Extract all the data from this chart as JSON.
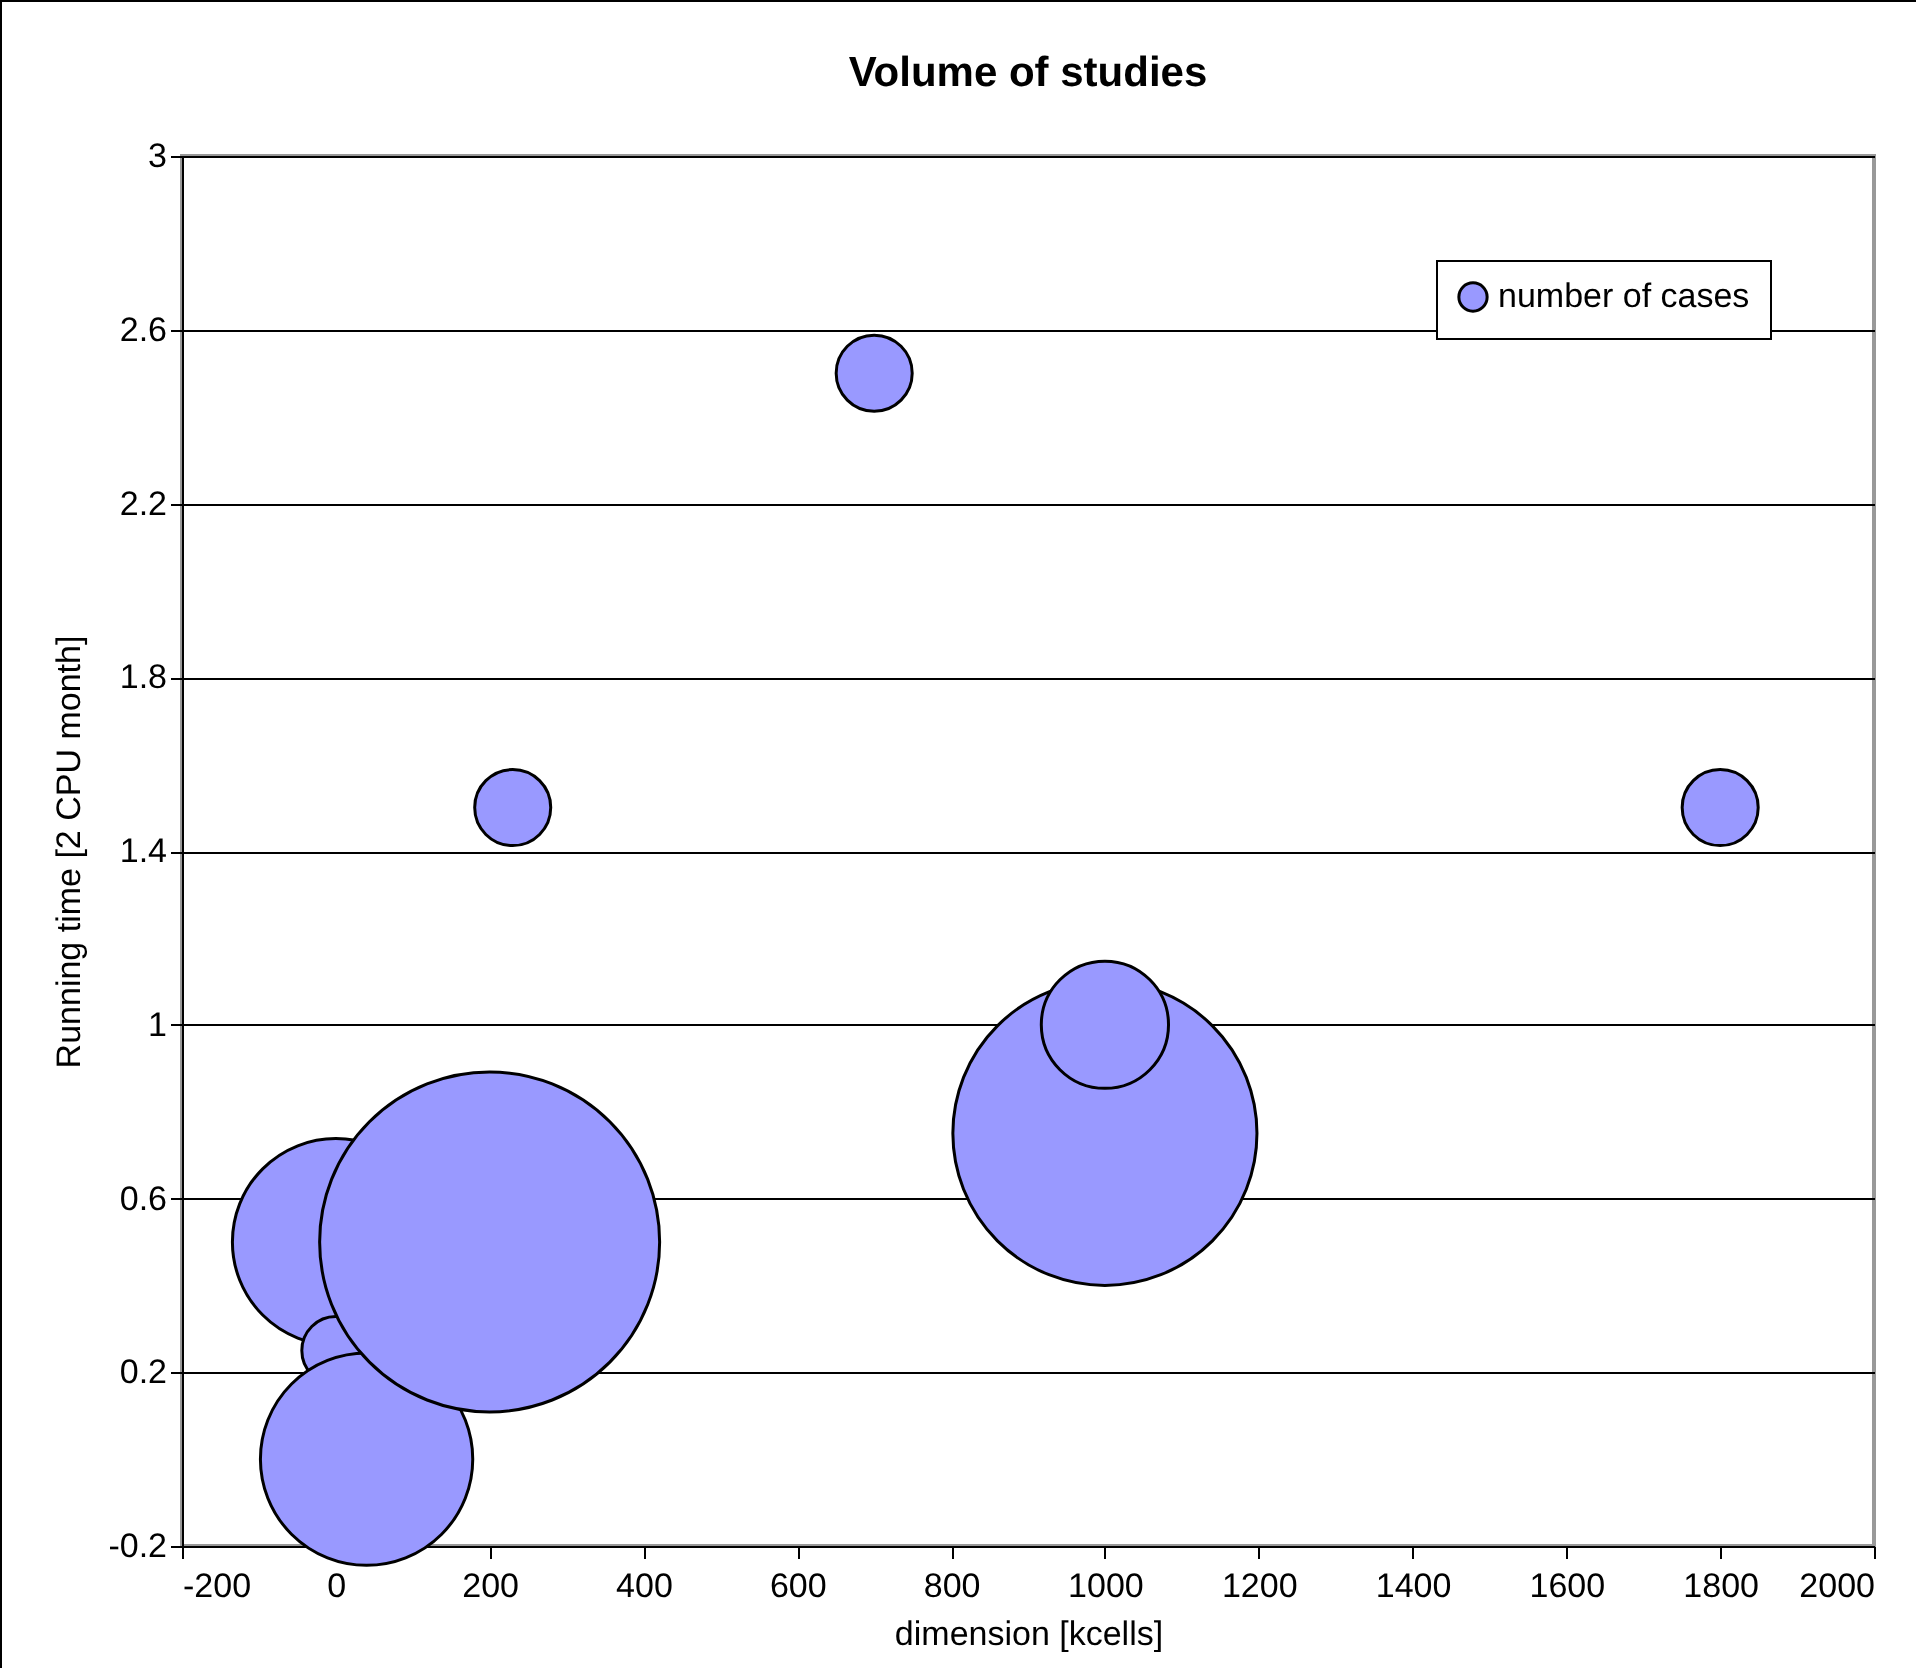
{
  "chart_data": {
    "type": "bubble",
    "title": "Volume of studies",
    "xlabel": "dimension [kcells]",
    "ylabel": "Running time [2 CPU month]",
    "x": [
      0,
      0,
      40,
      200,
      1000,
      1000,
      700,
      230,
      1800
    ],
    "series": [
      {
        "name": "number of cases",
        "color": "#9999ff",
        "values": [
          0.5,
          0.25,
          0,
          0.5,
          0.75,
          1,
          2.5,
          1.5,
          1.5
        ],
        "sizes": [
          0.37,
          0.04,
          0.39,
          1,
          0.8,
          0.14,
          0.05,
          0.05,
          0.05
        ]
      }
    ],
    "xlim": [
      -200,
      2000
    ],
    "xticks": [
      -200,
      0,
      200,
      400,
      600,
      800,
      1000,
      1200,
      1400,
      1600,
      1800,
      2000
    ],
    "ylim": [
      -0.2,
      3
    ],
    "yticks": [
      -0.2,
      0.2,
      0.6,
      1,
      1.4,
      1.8,
      2.2,
      2.6,
      3
    ],
    "grid": "y",
    "legend": "top right"
  }
}
